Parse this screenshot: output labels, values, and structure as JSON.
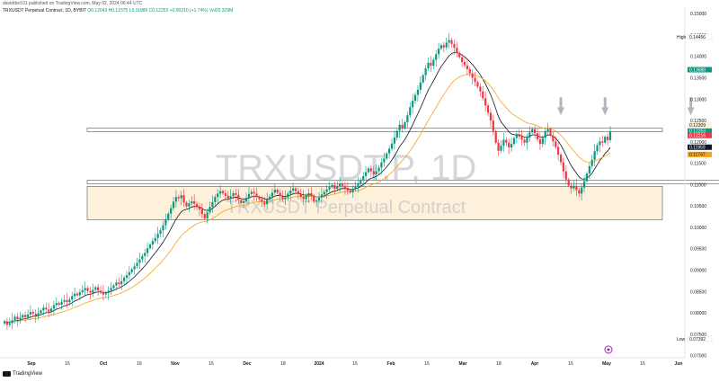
{
  "header": {
    "published_text": "daviddor101 published on TradingView.com, May 02, 2024 06:44 UTC",
    "legend": "TRXUSDT Perpetual Contract, 1D, BYBIT",
    "ohlc": "O0.12043 H0.12375 L0.11989 C0.12253 +0.00210 (+1.74%) Vol20.329M"
  },
  "watermark": {
    "symbol": "TRXUSDT.P, 1D",
    "description": "TRXUSDT Perpetual Contract"
  },
  "footer": {
    "brand": "TradingView"
  },
  "colors": {
    "up": "#089981",
    "down": "#f23645",
    "ema_fast": "#131722",
    "ema_slow": "#f7a21b",
    "zone_fill": "#fdf1dc",
    "arrow": "#b2b5be"
  },
  "chart_data": {
    "type": "candlestick",
    "y_axis_ticks": [
      "0.15000",
      "0.14500",
      "0.14000",
      "0.13500",
      "0.13000",
      "0.12500",
      "0.12000",
      "0.11500",
      "0.11000",
      "0.10500",
      "0.10000",
      "0.09500",
      "0.09000",
      "0.08500",
      "0.08000",
      "0.07500",
      "0.07000"
    ],
    "x_axis_ticks": [
      "Sep",
      "15",
      "Oct",
      "16",
      "Nov",
      "15",
      "Dec",
      "18",
      "2024",
      "15",
      "Feb",
      "15",
      "Mar",
      "18",
      "Apr",
      "15",
      "May",
      "15",
      "Jun"
    ],
    "ylim": [
      0.0695,
      0.1515
    ],
    "price_labels": [
      {
        "label": "High",
        "value": "0.14456"
      },
      {
        "label": "",
        "value": "0.13688"
      },
      {
        "label": "",
        "value": "0.12309"
      },
      {
        "label": "",
        "value": "0.12253",
        "sub": "17:15:42"
      },
      {
        "label": "",
        "value": "0.12216"
      },
      {
        "label": "",
        "value": "0.11959"
      },
      {
        "label": "",
        "value": "0.11747"
      },
      {
        "label": "Low",
        "value": "0.07392"
      }
    ],
    "zones": [
      {
        "name": "resistance-band",
        "from": 0.1224,
        "to": 0.1232
      },
      {
        "name": "support-band",
        "from": 0.1102,
        "to": 0.111
      },
      {
        "name": "demand-zone",
        "from": 0.1018,
        "to": 0.1096
      }
    ],
    "arrows_at_days": [
      214,
      231,
      264
    ],
    "closes": [
      0.078,
      0.0772,
      0.0776,
      0.0783,
      0.0791,
      0.0785,
      0.0789,
      0.0795,
      0.079,
      0.0796,
      0.0802,
      0.0798,
      0.0793,
      0.0799,
      0.0806,
      0.0812,
      0.0808,
      0.0803,
      0.081,
      0.0818,
      0.0823,
      0.0819,
      0.0826,
      0.083,
      0.0825,
      0.0831,
      0.0839,
      0.0845,
      0.0841,
      0.0848,
      0.0853,
      0.0858,
      0.0851,
      0.0847,
      0.0854,
      0.086,
      0.0852,
      0.0849,
      0.0843,
      0.0846,
      0.0852,
      0.0858,
      0.0864,
      0.0871,
      0.0867,
      0.0874,
      0.0882,
      0.0888,
      0.0895,
      0.0902,
      0.0909,
      0.0917,
      0.0925,
      0.0933,
      0.094,
      0.0951,
      0.096,
      0.0968,
      0.0975,
      0.0985,
      0.0993,
      0.1005,
      0.1018,
      0.1032,
      0.1045,
      0.106,
      0.1071,
      0.1068,
      0.1075,
      0.1058,
      0.1049,
      0.1056,
      0.1061,
      0.1055,
      0.1048,
      0.1042,
      0.1031,
      0.1021,
      0.1035,
      0.1048,
      0.1059,
      0.1071,
      0.1079,
      0.1085,
      0.108,
      0.1074,
      0.1068,
      0.1073,
      0.108,
      0.1076,
      0.1064,
      0.1057,
      0.1061,
      0.1069,
      0.1078,
      0.1083,
      0.1079,
      0.1071,
      0.1066,
      0.106,
      0.1054,
      0.1065,
      0.1072,
      0.1081,
      0.1088,
      0.1081,
      0.1074,
      0.1066,
      0.107,
      0.1079,
      0.1086,
      0.1091,
      0.1085,
      0.1078,
      0.1071,
      0.1066,
      0.1073,
      0.108,
      0.1074,
      0.106,
      0.1063,
      0.107,
      0.1077,
      0.1083,
      0.1089,
      0.1094,
      0.1099,
      0.109,
      0.1096,
      0.1102,
      0.1097,
      0.1092,
      0.1086,
      0.1082,
      0.109,
      0.1095,
      0.1102,
      0.1111,
      0.112,
      0.1129,
      0.1138,
      0.1131,
      0.1124,
      0.1131,
      0.114,
      0.1152,
      0.1161,
      0.1173,
      0.1184,
      0.1196,
      0.121,
      0.1226,
      0.124,
      0.1232,
      0.1246,
      0.1262,
      0.1281,
      0.1296,
      0.131,
      0.1322,
      0.1339,
      0.1356,
      0.1372,
      0.1385,
      0.1378,
      0.1392,
      0.1405,
      0.1418,
      0.1426,
      0.1421,
      0.1432,
      0.1438,
      0.1429,
      0.142,
      0.1408,
      0.1398,
      0.1387,
      0.1379,
      0.137,
      0.136,
      0.135,
      0.134,
      0.1329,
      0.1318,
      0.1302,
      0.1285,
      0.1268,
      0.125,
      0.1225,
      0.1198,
      0.1179,
      0.1191,
      0.1205,
      0.1198,
      0.1187,
      0.1195,
      0.1209,
      0.1218,
      0.1212,
      0.1205,
      0.1198,
      0.121,
      0.1222,
      0.123,
      0.122,
      0.1206,
      0.1195,
      0.1209,
      0.1224,
      0.123,
      0.1215,
      0.1201,
      0.1188,
      0.117,
      0.1152,
      0.1131,
      0.1112,
      0.1098,
      0.1091,
      0.1097,
      0.1087,
      0.1079,
      0.1093,
      0.1108,
      0.1126,
      0.1143,
      0.1158,
      0.1178,
      0.1192,
      0.1201,
      0.1198,
      0.1212,
      0.1204,
      0.1225
    ]
  }
}
